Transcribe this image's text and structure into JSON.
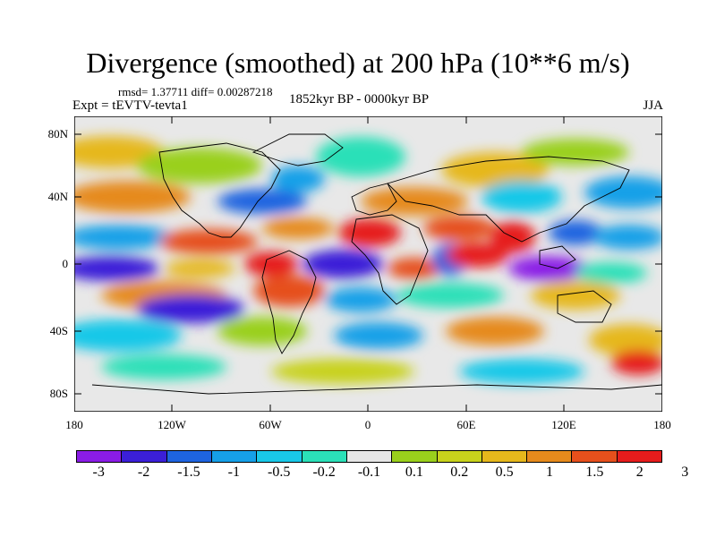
{
  "title": "Divergence (smoothed) at 200 hPa (10**6 m/s)",
  "stats": "rmsd= 1.37711  diff= 0.00287218",
  "experiment": "Expt = tEVTV-tevta1",
  "period": "1852kyr BP - 0000kyr BP",
  "season": "JJA",
  "map": {
    "lat_labels": [
      "80N",
      "40N",
      "0",
      "40S",
      "80S"
    ],
    "lon_labels": [
      "180",
      "120W",
      "60W",
      "0",
      "60E",
      "120E",
      "180"
    ],
    "ocean_fill": "#e8e8e8"
  },
  "colorbar": {
    "colors": [
      "#8a1ce6",
      "#3b1fd8",
      "#1e64e0",
      "#16a0e8",
      "#19c8e8",
      "#2be0b8",
      "#e6e6e6",
      "#9ad01c",
      "#c8d21c",
      "#e6b81c",
      "#e68a1c",
      "#e6501c",
      "#e61c1c"
    ],
    "labels": [
      "-3",
      "-2",
      "-1.5",
      "-1",
      "-0.5",
      "-0.2",
      "-0.1",
      "0.1",
      "0.2",
      "0.5",
      "1",
      "1.5",
      "2",
      "3"
    ]
  }
}
